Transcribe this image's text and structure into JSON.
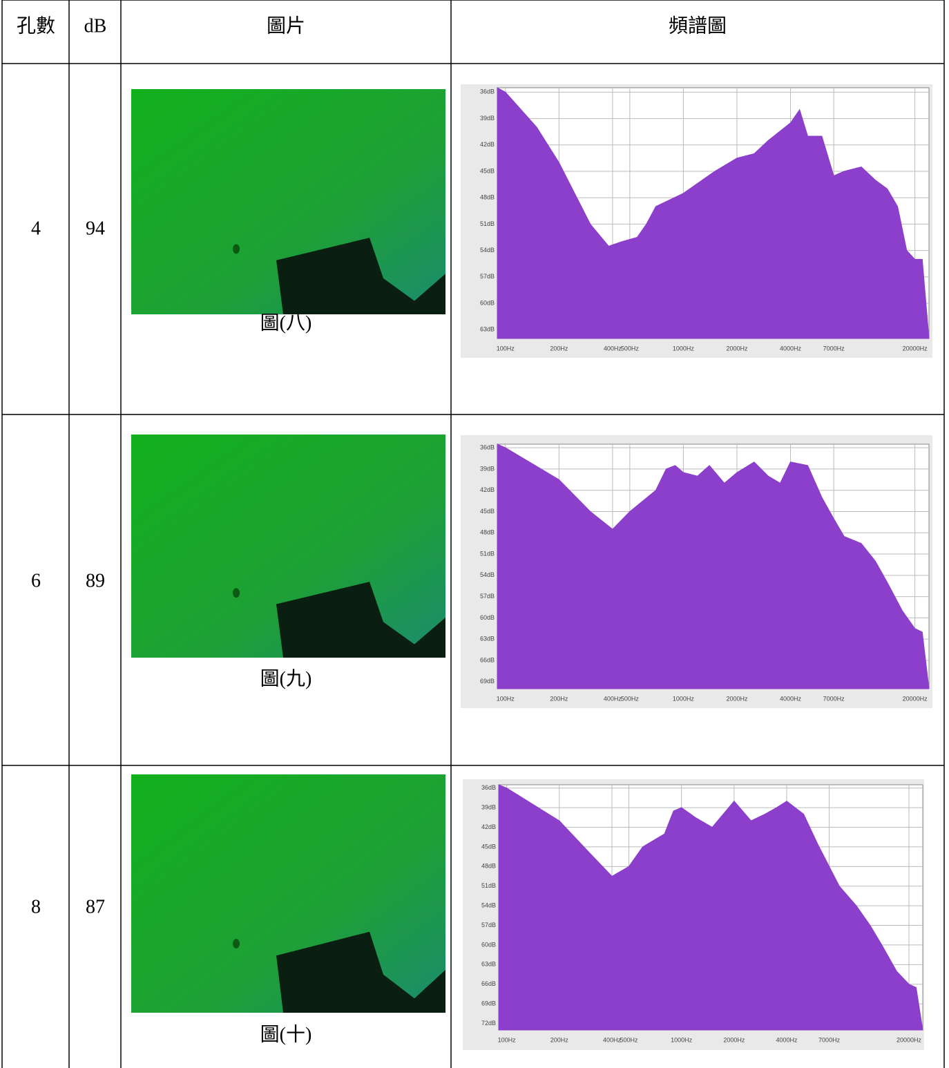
{
  "table": {
    "header": [
      "孔數",
      "dB",
      "圖片",
      "頻譜圖"
    ],
    "rows": [
      {
        "holes": 4,
        "db": 94,
        "caption": "圖(八)",
        "chart": {
          "type": "area",
          "xscale": "log",
          "grid": true,
          "color": "#8b3fcb",
          "xlim": [
            90,
            24000
          ],
          "ylim": [
            64,
            35.5
          ],
          "xticks": [
            {
              "value": 100,
              "label": "100Hz"
            },
            {
              "value": 200,
              "label": "200Hz"
            },
            {
              "value": 400,
              "label": "400Hz"
            },
            {
              "value": 500,
              "label": "500Hz"
            },
            {
              "value": 1000,
              "label": "1000Hz"
            },
            {
              "value": 2000,
              "label": "2000Hz"
            },
            {
              "value": 4000,
              "label": "4000Hz"
            },
            {
              "value": 7000,
              "label": "7000Hz"
            },
            {
              "value": 20000,
              "label": "20000Hz"
            }
          ],
          "yticks": [
            {
              "value": 36,
              "label": "36dB"
            },
            {
              "value": 39,
              "label": "39dB"
            },
            {
              "value": 42,
              "label": "42dB"
            },
            {
              "value": 45,
              "label": "45dB"
            },
            {
              "value": 48,
              "label": "48dB"
            },
            {
              "value": 51,
              "label": "51dB"
            },
            {
              "value": 54,
              "label": "54dB"
            },
            {
              "value": 57,
              "label": "57dB"
            },
            {
              "value": 60,
              "label": "60dB"
            },
            {
              "value": 63,
              "label": "63dB"
            }
          ],
          "x": [
            90,
            100,
            150,
            200,
            300,
            380,
            450,
            550,
            620,
            700,
            1000,
            1500,
            2000,
            2500,
            3000,
            4000,
            4500,
            5000,
            6000,
            7000,
            8000,
            10000,
            12000,
            14000,
            16000,
            18000,
            20000,
            22000,
            24000
          ],
          "values": [
            35.5,
            36,
            40,
            44,
            51,
            53.5,
            53,
            52.5,
            51,
            49,
            47.5,
            45,
            43.5,
            43,
            41.5,
            39.5,
            38,
            41,
            41,
            45.5,
            45,
            44.5,
            46,
            47,
            49,
            54,
            55,
            55,
            64
          ]
        }
      },
      {
        "holes": 6,
        "db": 89,
        "caption": "圖(九)",
        "chart": {
          "type": "area",
          "xscale": "log",
          "grid": true,
          "color": "#8b3fcb",
          "xlim": [
            90,
            24000
          ],
          "ylim": [
            70,
            35.5
          ],
          "xticks": [
            {
              "value": 100,
              "label": "100Hz"
            },
            {
              "value": 200,
              "label": "200Hz"
            },
            {
              "value": 400,
              "label": "400Hz"
            },
            {
              "value": 500,
              "label": "500Hz"
            },
            {
              "value": 1000,
              "label": "1000Hz"
            },
            {
              "value": 2000,
              "label": "2000Hz"
            },
            {
              "value": 4000,
              "label": "4000Hz"
            },
            {
              "value": 7000,
              "label": "7000Hz"
            },
            {
              "value": 20000,
              "label": "20000Hz"
            }
          ],
          "yticks": [
            {
              "value": 36,
              "label": "36dB"
            },
            {
              "value": 39,
              "label": "39dB"
            },
            {
              "value": 42,
              "label": "42dB"
            },
            {
              "value": 45,
              "label": "45dB"
            },
            {
              "value": 48,
              "label": "48dB"
            },
            {
              "value": 51,
              "label": "51dB"
            },
            {
              "value": 54,
              "label": "54dB"
            },
            {
              "value": 57,
              "label": "57dB"
            },
            {
              "value": 60,
              "label": "60dB"
            },
            {
              "value": 63,
              "label": "63dB"
            },
            {
              "value": 66,
              "label": "66dB"
            },
            {
              "value": 69,
              "label": "69dB"
            }
          ],
          "x": [
            90,
            100,
            200,
            300,
            400,
            500,
            700,
            800,
            900,
            1000,
            1200,
            1400,
            1700,
            2000,
            2500,
            3000,
            3500,
            4000,
            5000,
            6000,
            7000,
            8000,
            10000,
            12000,
            14000,
            17000,
            20000,
            22000,
            24000
          ],
          "values": [
            35.5,
            36,
            40.5,
            45,
            47.5,
            45,
            42,
            39,
            38.5,
            39.5,
            40,
            38.5,
            41,
            39.5,
            38,
            40,
            41,
            38,
            38.5,
            43,
            46,
            48.5,
            49.5,
            52,
            55,
            59,
            61.5,
            62,
            70
          ]
        }
      },
      {
        "holes": 8,
        "db": 87,
        "caption": "圖(十)",
        "chart": {
          "type": "area",
          "xscale": "log",
          "grid": true,
          "color": "#8b3fcb",
          "xlim": [
            90,
            24000
          ],
          "ylim": [
            73,
            35.5
          ],
          "xticks": [
            {
              "value": 100,
              "label": "100Hz"
            },
            {
              "value": 200,
              "label": "200Hz"
            },
            {
              "value": 400,
              "label": "400Hz"
            },
            {
              "value": 500,
              "label": "500Hz"
            },
            {
              "value": 1000,
              "label": "1000Hz"
            },
            {
              "value": 2000,
              "label": "2000Hz"
            },
            {
              "value": 4000,
              "label": "4000Hz"
            },
            {
              "value": 7000,
              "label": "7000Hz"
            },
            {
              "value": 20000,
              "label": "20000Hz"
            }
          ],
          "yticks": [
            {
              "value": 36,
              "label": "36dB"
            },
            {
              "value": 39,
              "label": "39dB"
            },
            {
              "value": 42,
              "label": "42dB"
            },
            {
              "value": 45,
              "label": "45dB"
            },
            {
              "value": 48,
              "label": "48dB"
            },
            {
              "value": 51,
              "label": "51dB"
            },
            {
              "value": 54,
              "label": "54dB"
            },
            {
              "value": 57,
              "label": "57dB"
            },
            {
              "value": 60,
              "label": "60dB"
            },
            {
              "value": 63,
              "label": "63dB"
            },
            {
              "value": 66,
              "label": "66dB"
            },
            {
              "value": 69,
              "label": "69dB"
            },
            {
              "value": 72,
              "label": "72dB"
            }
          ],
          "x": [
            90,
            100,
            200,
            300,
            400,
            500,
            600,
            800,
            900,
            1000,
            1200,
            1500,
            2000,
            2500,
            3000,
            3500,
            4000,
            5000,
            6000,
            7000,
            8000,
            10000,
            12000,
            14000,
            17000,
            20000,
            22000,
            24000
          ],
          "values": [
            35.5,
            36,
            41,
            46,
            49.5,
            48,
            45,
            43,
            39.5,
            39,
            40.5,
            42,
            38,
            41,
            40,
            39,
            38,
            40,
            44.5,
            48,
            51,
            54,
            57,
            60,
            64,
            66,
            66.5,
            73
          ]
        }
      }
    ]
  }
}
